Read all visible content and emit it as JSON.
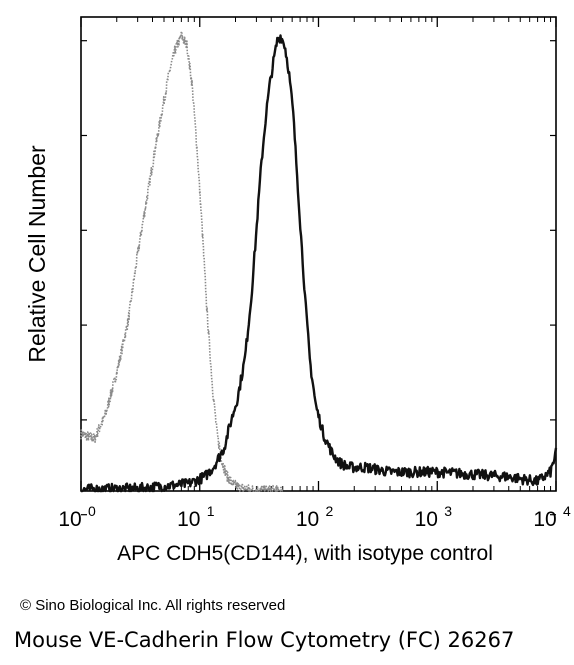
{
  "chart_data": {
    "type": "line",
    "xlabel": "APC CDH5(CD144), with isotype control",
    "ylabel": "Relative Cell Number",
    "x_scale": "log",
    "xlim": [
      1,
      10000
    ],
    "ylim": [
      0,
      100
    ],
    "x_ticks": [
      {
        "value": 1,
        "base": "10",
        "exp": "0"
      },
      {
        "value": 10,
        "base": "10",
        "exp": "1"
      },
      {
        "value": 100,
        "base": "10",
        "exp": "2"
      },
      {
        "value": 1000,
        "base": "10",
        "exp": "3"
      },
      {
        "value": 10000,
        "base": "10",
        "exp": "4"
      }
    ],
    "grid": false,
    "series": [
      {
        "style": "gray-dotted",
        "x": [
          1.0,
          1.3,
          1.6,
          2.0,
          2.5,
          3.0,
          3.6,
          4.2,
          4.8,
          5.5,
          6.2,
          7.0,
          7.8,
          8.6,
          9.5,
          10.5,
          11.5,
          12.8,
          14.0,
          15.5,
          17.0,
          19.0,
          21.0,
          24.0,
          28.0,
          35.0,
          50.0
        ],
        "y": [
          12,
          11,
          16,
          25,
          36,
          50,
          62,
          72,
          80,
          88,
          93,
          96,
          94,
          86,
          72,
          55,
          38,
          22,
          12,
          6,
          3,
          1.5,
          0.8,
          0.4,
          0.2,
          0.1,
          0
        ]
      },
      {
        "style": "black-solid",
        "x": [
          1.0,
          3.0,
          8.0,
          11.0,
          13.0,
          16.0,
          18.0,
          21.0,
          24.0,
          27.0,
          30.0,
          33.0,
          36.0,
          39.0,
          42.0,
          45.0,
          48.0,
          52.0,
          56.0,
          61.0,
          66.0,
          72.0,
          78.0,
          85.0,
          95.0,
          110.0,
          130.0,
          150.0,
          180.0,
          250.0,
          400.0,
          700.0,
          1000.0,
          2000.0,
          4000.0,
          7000.0,
          9000.0,
          10000.0
        ],
        "y": [
          0.3,
          0.5,
          1.5,
          3,
          5,
          9,
          14,
          20,
          28,
          40,
          55,
          69,
          79,
          86,
          91,
          95,
          96,
          94,
          89,
          80,
          67,
          52,
          39,
          27,
          18,
          12,
          8,
          6,
          5,
          5,
          4,
          4,
          4,
          3.5,
          3,
          2,
          4,
          8
        ]
      }
    ]
  },
  "footer": {
    "copyright": "© Sino Biological Inc. All rights reserved",
    "caption": "Mouse VE-Cadherin Flow Cytometry (FC) 26267"
  }
}
